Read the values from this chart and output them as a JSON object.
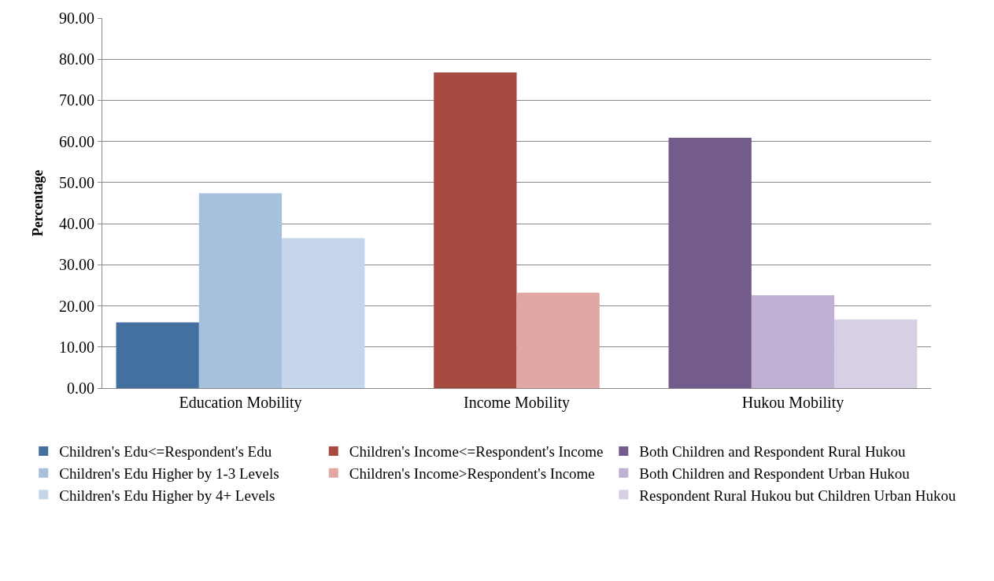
{
  "chart_data": {
    "type": "bar",
    "ylabel": "Percentage",
    "categories": [
      "Education Mobility",
      "Income Mobility",
      "Hukou Mobility"
    ],
    "series": [
      {
        "name": "Children's Edu<=Respondent's Edu",
        "color": "#4470a0",
        "values": [
          16.0,
          null,
          null
        ]
      },
      {
        "name": "Children's Edu Higher by 1-3 Levels",
        "color": "#a7c0de",
        "values": [
          47.4,
          null,
          null
        ]
      },
      {
        "name": "Children's Edu Higher by 4+ Levels",
        "color": "#c5d6ea",
        "values": [
          36.5,
          null,
          null
        ]
      },
      {
        "name": "Children's Income<=Respondent's Income",
        "color": "#a64a42",
        "values": [
          null,
          76.8,
          null
        ]
      },
      {
        "name": "Children's Income>Respondent's Income",
        "color": "#e3a7a3",
        "values": [
          null,
          23.2,
          null
        ]
      },
      {
        "name": "Both Children and Respondent Rural Hukou",
        "color": "#735b8b",
        "values": [
          null,
          null,
          60.9
        ]
      },
      {
        "name": "Both Children and Respondent Urban Hukou",
        "color": "#c0b0d3",
        "values": [
          null,
          null,
          22.6
        ]
      },
      {
        "name": "Respondent Rural Hukou but Children Urban Hukou",
        "color": "#d7cfe3",
        "values": [
          null,
          null,
          16.7
        ]
      }
    ],
    "ylim": [
      0,
      90
    ],
    "yticks": [
      {
        "value": 0,
        "label": "0.00"
      },
      {
        "value": 10,
        "label": "10.00"
      },
      {
        "value": 20,
        "label": "20.00"
      },
      {
        "value": 30,
        "label": "30.00"
      },
      {
        "value": 40,
        "label": "40.00"
      },
      {
        "value": 50,
        "label": "50.00"
      },
      {
        "value": 60,
        "label": "60.00"
      },
      {
        "value": 70,
        "label": "70.00"
      },
      {
        "value": 80,
        "label": "80.00"
      },
      {
        "value": 90,
        "label": "90.00"
      }
    ],
    "grid": "y",
    "legend": "bottom"
  }
}
